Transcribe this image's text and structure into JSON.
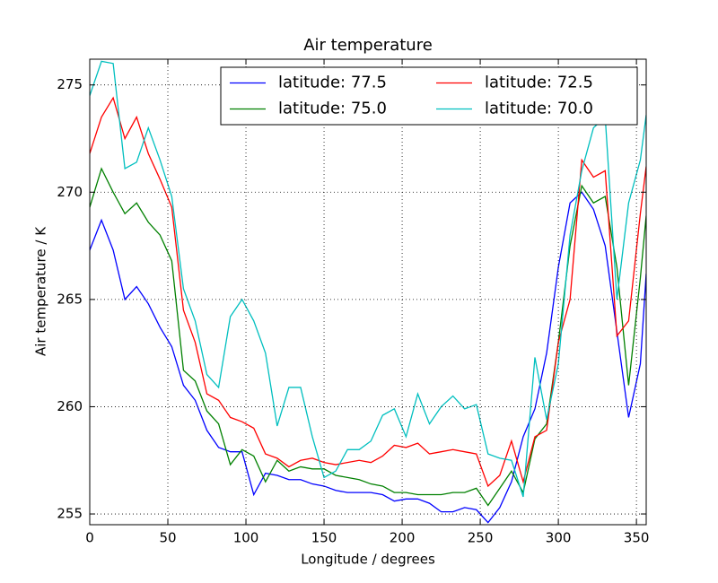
{
  "chart_data": {
    "type": "line",
    "title": "Air temperature",
    "x_label": "Longitude / degrees",
    "y_label": "Air temperature / K",
    "x": [
      0,
      7.5,
      15,
      22.5,
      30,
      37.5,
      45,
      52.5,
      60,
      67.5,
      75,
      82.5,
      90,
      97.5,
      105,
      112.5,
      120,
      127.5,
      135,
      142.5,
      150,
      157.5,
      165,
      172.5,
      180,
      187.5,
      195,
      202.5,
      210,
      217.5,
      225,
      232.5,
      240,
      247.5,
      255,
      262.5,
      270,
      277.5,
      285,
      292.5,
      300,
      307.5,
      315,
      322.5,
      330,
      337.5,
      345,
      352.5,
      356.25
    ],
    "series": [
      {
        "name": "latitude: 77.5",
        "color": "#0000ff",
        "values": [
          267.3,
          268.7,
          267.3,
          265.0,
          265.6,
          264.8,
          263.7,
          262.8,
          261.0,
          260.3,
          258.9,
          258.1,
          257.9,
          257.9,
          255.9,
          256.9,
          256.8,
          256.6,
          256.6,
          256.4,
          256.3,
          256.1,
          256.0,
          256.0,
          256.0,
          255.9,
          255.6,
          255.7,
          255.7,
          255.5,
          255.1,
          255.1,
          255.3,
          255.2,
          254.6,
          255.3,
          256.5,
          258.6,
          259.9,
          262.5,
          266.5,
          269.5,
          270.0,
          269.2,
          267.5,
          263.5,
          259.5,
          262.0,
          266.2
        ]
      },
      {
        "name": "latitude: 75.0",
        "color": "#008000",
        "values": [
          269.3,
          271.1,
          270.0,
          269.0,
          269.5,
          268.6,
          268.0,
          266.8,
          261.7,
          261.2,
          259.8,
          259.2,
          257.3,
          258.0,
          257.7,
          256.5,
          257.5,
          257.0,
          257.2,
          257.1,
          257.1,
          256.8,
          256.7,
          256.6,
          256.4,
          256.3,
          256.0,
          256.0,
          255.9,
          255.9,
          255.9,
          256.0,
          256.0,
          256.2,
          255.4,
          256.2,
          257.0,
          256.0,
          258.5,
          259.2,
          263.0,
          267.5,
          270.3,
          269.5,
          269.8,
          266.5,
          261.0,
          266.0,
          268.9
        ]
      },
      {
        "name": "latitude: 72.5",
        "color": "#ff0000",
        "values": [
          271.8,
          273.5,
          274.4,
          272.5,
          273.5,
          271.8,
          270.6,
          269.3,
          264.5,
          263.0,
          260.6,
          260.3,
          259.5,
          259.3,
          259.0,
          257.8,
          257.6,
          257.2,
          257.5,
          257.6,
          257.4,
          257.3,
          257.4,
          257.5,
          257.4,
          257.7,
          258.2,
          258.1,
          258.3,
          257.8,
          257.9,
          258.0,
          257.9,
          257.8,
          256.3,
          256.8,
          258.4,
          256.5,
          258.6,
          258.9,
          263.0,
          265.0,
          271.5,
          270.7,
          271.0,
          263.3,
          264.0,
          269.0,
          271.2
        ]
      },
      {
        "name": "latitude: 70.0",
        "color": "#00bfbf",
        "values": [
          274.5,
          276.1,
          276.0,
          271.1,
          271.4,
          273.0,
          271.5,
          269.8,
          265.5,
          264.0,
          261.5,
          260.9,
          264.2,
          265.0,
          264.0,
          262.5,
          259.1,
          260.9,
          260.9,
          258.6,
          256.7,
          257.0,
          258.0,
          258.0,
          258.4,
          259.6,
          259.9,
          258.6,
          260.6,
          259.2,
          260.0,
          260.5,
          259.9,
          260.1,
          257.8,
          257.6,
          257.5,
          255.8,
          262.3,
          259.4,
          262.0,
          268.0,
          271.0,
          273.0,
          273.5,
          265.0,
          269.5,
          271.5,
          273.6
        ]
      }
    ],
    "xlim": [
      0,
      356.25
    ],
    "xticks": [
      0,
      50,
      100,
      150,
      200,
      250,
      300,
      350
    ],
    "ylim": [
      254.5,
      276.2
    ],
    "yticks": [
      255,
      260,
      265,
      270,
      275
    ],
    "grid": true,
    "legend": "upper right",
    "legend_ncol": 2
  }
}
